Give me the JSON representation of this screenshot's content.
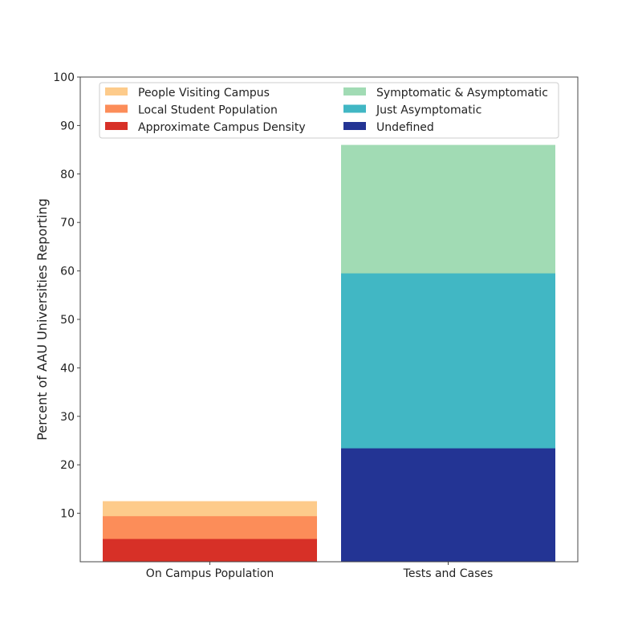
{
  "chart_data": {
    "type": "bar",
    "mode": "overlaid-cumulative",
    "title": "",
    "xlabel": "",
    "ylabel": "Percent of AAU Universities Reporting",
    "ylim": [
      0,
      100
    ],
    "yticks": [
      10,
      20,
      30,
      40,
      50,
      60,
      70,
      80,
      90,
      100
    ],
    "categories": [
      "On Campus Population",
      "Tests and Cases"
    ],
    "legend_placement": "top",
    "series": [
      {
        "name": "People Visiting Campus",
        "category": 0,
        "value": 12.5,
        "color": "#fdcb8b"
      },
      {
        "name": "Local Student Population",
        "category": 0,
        "value": 9.4,
        "color": "#fc8d59"
      },
      {
        "name": "Approximate Campus Density",
        "category": 0,
        "value": 4.7,
        "color": "#d73027"
      },
      {
        "name": "Symptomatic & Asymptomatic",
        "category": 1,
        "value": 86.0,
        "color": "#a1dbb4"
      },
      {
        "name": "Just Asymptomatic",
        "category": 1,
        "value": 59.5,
        "color": "#41b7c4"
      },
      {
        "name": "Undefined",
        "category": 1,
        "value": 23.4,
        "color": "#233494"
      }
    ]
  }
}
